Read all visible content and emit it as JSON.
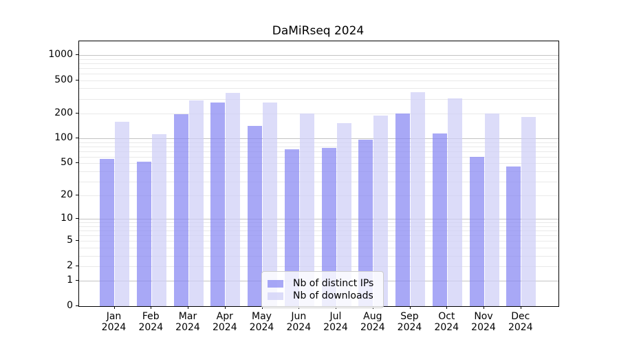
{
  "title": "DaMiRseq 2024",
  "chart_data": {
    "type": "bar",
    "title": "DaMiRseq 2024",
    "categories": [
      "Jan",
      "Feb",
      "Mar",
      "Apr",
      "May",
      "Jun",
      "Jul",
      "Aug",
      "Sep",
      "Oct",
      "Nov",
      "Dec"
    ],
    "year": "2024",
    "series": [
      {
        "name": "Nb of distinct IPs",
        "color": "rgba(135,135,242,0.72)",
        "values": [
          57,
          52,
          197,
          269,
          142,
          74,
          77,
          97,
          198,
          115,
          60,
          46
        ]
      },
      {
        "name": "Nb of downloads",
        "color": "rgba(206,206,247,0.72)",
        "values": [
          160,
          113,
          287,
          353,
          272,
          200,
          153,
          188,
          357,
          305,
          200,
          180
        ]
      }
    ],
    "y_axis": {
      "scale": "log10(value+1)",
      "tick_values": [
        1000,
        500,
        200,
        100,
        50,
        20,
        10,
        5,
        2,
        1,
        0
      ],
      "tick_labels": [
        "1000",
        "500",
        "200",
        "100",
        "50",
        "20",
        "10",
        "5",
        "2",
        "1",
        "0"
      ],
      "major_gridlines": [
        1,
        10,
        100,
        1000
      ],
      "minor_gridlines": [
        2,
        3,
        4,
        5,
        6,
        7,
        8,
        9,
        20,
        30,
        40,
        50,
        60,
        70,
        80,
        90,
        200,
        300,
        400,
        500,
        600,
        700,
        800,
        900
      ]
    },
    "legend_position": "lower center",
    "grid": true
  },
  "legend": {
    "items": [
      {
        "label": "Nb of distinct IPs",
        "color": "rgba(135,135,242,0.72)"
      },
      {
        "label": "Nb of downloads",
        "color": "rgba(206,206,247,0.72)"
      }
    ]
  }
}
